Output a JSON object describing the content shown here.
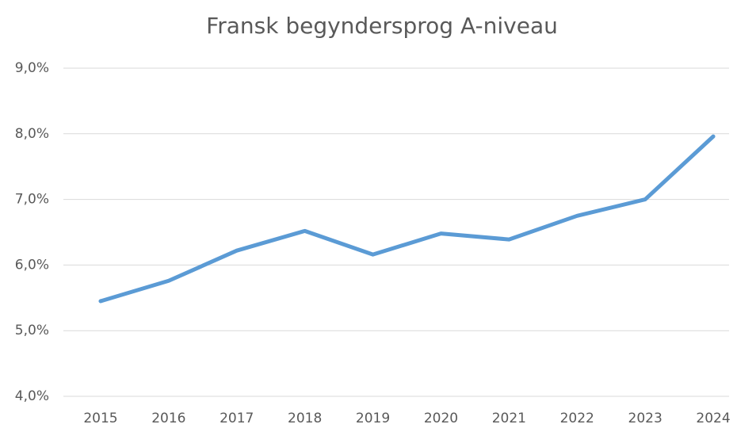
{
  "chart_data": {
    "type": "line",
    "title": "Fransk begyndersprog A-niveau",
    "categories": [
      "2015",
      "2016",
      "2017",
      "2018",
      "2019",
      "2020",
      "2021",
      "2022",
      "2023",
      "2024"
    ],
    "series": [
      {
        "name": "Fransk begyndersprog A-niveau",
        "color": "#5b9bd5",
        "values": [
          5.45,
          5.76,
          6.22,
          6.52,
          6.16,
          6.48,
          6.39,
          6.75,
          7.0,
          7.96
        ]
      }
    ],
    "ylim": [
      4,
      9
    ],
    "yticks": [
      {
        "value": 4,
        "label": "4,0%"
      },
      {
        "value": 5,
        "label": "5,0%"
      },
      {
        "value": 6,
        "label": "6,0%"
      },
      {
        "value": 7,
        "label": "7,0%"
      },
      {
        "value": 8,
        "label": "8,0%"
      },
      {
        "value": 9,
        "label": "9,0%"
      }
    ],
    "grid": true
  }
}
